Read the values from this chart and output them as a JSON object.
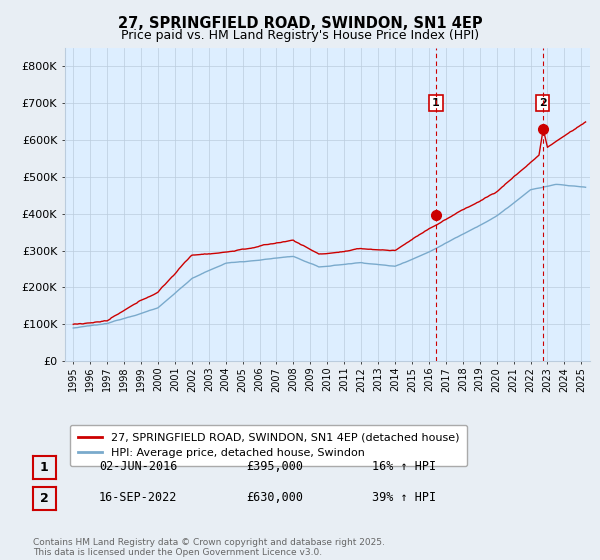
{
  "title": "27, SPRINGFIELD ROAD, SWINDON, SN1 4EP",
  "subtitle": "Price paid vs. HM Land Registry's House Price Index (HPI)",
  "ylabel_ticks": [
    "£0",
    "£100K",
    "£200K",
    "£300K",
    "£400K",
    "£500K",
    "£600K",
    "£700K",
    "£800K"
  ],
  "ytick_values": [
    0,
    100000,
    200000,
    300000,
    400000,
    500000,
    600000,
    700000,
    800000
  ],
  "ylim": [
    0,
    850000
  ],
  "xlim_start": 1994.5,
  "xlim_end": 2025.5,
  "red_line_color": "#cc0000",
  "blue_line_color": "#7aaacc",
  "dashed_line_color": "#cc0000",
  "shade_color": "#ddeeff",
  "marker1_x": 2016.42,
  "marker1_y": 395000,
  "marker2_x": 2022.71,
  "marker2_y": 630000,
  "annotation1_label": "1",
  "annotation2_label": "2",
  "legend_entries": [
    "27, SPRINGFIELD ROAD, SWINDON, SN1 4EP (detached house)",
    "HPI: Average price, detached house, Swindon"
  ],
  "sale1_date": "02-JUN-2016",
  "sale1_price": "£395,000",
  "sale1_hpi": "16% ↑ HPI",
  "sale2_date": "16-SEP-2022",
  "sale2_price": "£630,000",
  "sale2_hpi": "39% ↑ HPI",
  "footer": "Contains HM Land Registry data © Crown copyright and database right 2025.\nThis data is licensed under the Open Government Licence v3.0.",
  "background_color": "#e8eef4",
  "plot_background": "#ddeeff",
  "grid_color": "#bbccdd"
}
